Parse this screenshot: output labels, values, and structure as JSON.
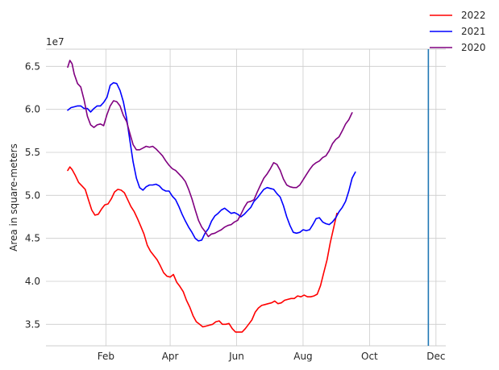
{
  "chart_data": {
    "type": "line",
    "title": "",
    "xlabel": "",
    "ylabel": "Area in square-meters",
    "y_offset_label": "1e7",
    "x_unit": "day of year",
    "xlim": [
      -24,
      343
    ],
    "ylim": [
      3.25,
      6.7
    ],
    "y_ticks": [
      3.5,
      4.0,
      4.5,
      5.0,
      5.5,
      6.0,
      6.5
    ],
    "y_tick_labels": [
      "3.5",
      "4.0",
      "4.5",
      "5.0",
      "5.5",
      "6.0",
      "6.5"
    ],
    "x_ticks": [
      31,
      90,
      151,
      212,
      273,
      334
    ],
    "x_tick_labels": [
      "Feb",
      "Apr",
      "Jun",
      "Aug",
      "Oct",
      "Dec"
    ],
    "grid": true,
    "legend_position": "top-right",
    "vline_x": 327,
    "vline_color": "#1f77b4",
    "series": [
      {
        "name": "2022",
        "color": "#ff0000",
        "points": [
          [
            -4,
            5.29
          ],
          [
            -2,
            5.33
          ],
          [
            0,
            5.3
          ],
          [
            3,
            5.23
          ],
          [
            6,
            5.15
          ],
          [
            9,
            5.11
          ],
          [
            12,
            5.07
          ],
          [
            15,
            4.95
          ],
          [
            18,
            4.83
          ],
          [
            21,
            4.77
          ],
          [
            24,
            4.78
          ],
          [
            27,
            4.84
          ],
          [
            30,
            4.89
          ],
          [
            33,
            4.9
          ],
          [
            36,
            4.96
          ],
          [
            39,
            5.04
          ],
          [
            42,
            5.07
          ],
          [
            45,
            5.06
          ],
          [
            48,
            5.03
          ],
          [
            51,
            4.95
          ],
          [
            54,
            4.87
          ],
          [
            57,
            4.81
          ],
          [
            60,
            4.73
          ],
          [
            63,
            4.64
          ],
          [
            66,
            4.55
          ],
          [
            69,
            4.42
          ],
          [
            72,
            4.35
          ],
          [
            75,
            4.3
          ],
          [
            78,
            4.25
          ],
          [
            81,
            4.18
          ],
          [
            84,
            4.1
          ],
          [
            87,
            4.06
          ],
          [
            90,
            4.05
          ],
          [
            93,
            4.08
          ],
          [
            96,
            3.99
          ],
          [
            99,
            3.94
          ],
          [
            102,
            3.88
          ],
          [
            105,
            3.78
          ],
          [
            108,
            3.7
          ],
          [
            111,
            3.6
          ],
          [
            114,
            3.53
          ],
          [
            117,
            3.5
          ],
          [
            120,
            3.47
          ],
          [
            123,
            3.48
          ],
          [
            126,
            3.49
          ],
          [
            129,
            3.5
          ],
          [
            132,
            3.53
          ],
          [
            135,
            3.54
          ],
          [
            138,
            3.5
          ],
          [
            141,
            3.5
          ],
          [
            144,
            3.51
          ],
          [
            147,
            3.45
          ],
          [
            150,
            3.41
          ],
          [
            153,
            3.41
          ],
          [
            156,
            3.41
          ],
          [
            159,
            3.45
          ],
          [
            162,
            3.5
          ],
          [
            165,
            3.55
          ],
          [
            168,
            3.64
          ],
          [
            171,
            3.69
          ],
          [
            174,
            3.72
          ],
          [
            177,
            3.73
          ],
          [
            180,
            3.74
          ],
          [
            183,
            3.75
          ],
          [
            186,
            3.77
          ],
          [
            189,
            3.74
          ],
          [
            192,
            3.75
          ],
          [
            195,
            3.78
          ],
          [
            198,
            3.79
          ],
          [
            201,
            3.8
          ],
          [
            204,
            3.8
          ],
          [
            207,
            3.83
          ],
          [
            210,
            3.82
          ],
          [
            213,
            3.84
          ],
          [
            216,
            3.82
          ],
          [
            219,
            3.82
          ],
          [
            222,
            3.83
          ],
          [
            225,
            3.85
          ],
          [
            228,
            3.95
          ],
          [
            231,
            4.1
          ],
          [
            234,
            4.25
          ],
          [
            237,
            4.45
          ],
          [
            240,
            4.62
          ],
          [
            243,
            4.79
          ]
        ]
      },
      {
        "name": "2021",
        "color": "#0000ff",
        "points": [
          [
            -4,
            5.99
          ],
          [
            -1,
            6.02
          ],
          [
            2,
            6.03
          ],
          [
            5,
            6.04
          ],
          [
            8,
            6.04
          ],
          [
            11,
            6.01
          ],
          [
            14,
            6.01
          ],
          [
            17,
            5.97
          ],
          [
            20,
            6.01
          ],
          [
            23,
            6.04
          ],
          [
            26,
            6.04
          ],
          [
            29,
            6.08
          ],
          [
            32,
            6.14
          ],
          [
            35,
            6.28
          ],
          [
            38,
            6.31
          ],
          [
            41,
            6.3
          ],
          [
            44,
            6.22
          ],
          [
            47,
            6.09
          ],
          [
            50,
            5.9
          ],
          [
            53,
            5.64
          ],
          [
            56,
            5.39
          ],
          [
            59,
            5.2
          ],
          [
            62,
            5.09
          ],
          [
            65,
            5.06
          ],
          [
            68,
            5.1
          ],
          [
            71,
            5.12
          ],
          [
            74,
            5.12
          ],
          [
            77,
            5.13
          ],
          [
            80,
            5.11
          ],
          [
            83,
            5.07
          ],
          [
            86,
            5.05
          ],
          [
            89,
            5.05
          ],
          [
            92,
            4.99
          ],
          [
            95,
            4.95
          ],
          [
            98,
            4.87
          ],
          [
            101,
            4.78
          ],
          [
            104,
            4.7
          ],
          [
            107,
            4.63
          ],
          [
            110,
            4.57
          ],
          [
            113,
            4.5
          ],
          [
            116,
            4.47
          ],
          [
            119,
            4.48
          ],
          [
            122,
            4.56
          ],
          [
            125,
            4.61
          ],
          [
            128,
            4.7
          ],
          [
            131,
            4.76
          ],
          [
            134,
            4.79
          ],
          [
            137,
            4.83
          ],
          [
            140,
            4.85
          ],
          [
            143,
            4.82
          ],
          [
            146,
            4.79
          ],
          [
            149,
            4.8
          ],
          [
            152,
            4.78
          ],
          [
            155,
            4.75
          ],
          [
            158,
            4.78
          ],
          [
            161,
            4.82
          ],
          [
            164,
            4.86
          ],
          [
            167,
            4.93
          ],
          [
            170,
            4.97
          ],
          [
            173,
            5.02
          ],
          [
            176,
            5.07
          ],
          [
            179,
            5.09
          ],
          [
            182,
            5.08
          ],
          [
            185,
            5.07
          ],
          [
            188,
            5.02
          ],
          [
            191,
            4.98
          ],
          [
            194,
            4.88
          ],
          [
            197,
            4.75
          ],
          [
            200,
            4.65
          ],
          [
            203,
            4.57
          ],
          [
            206,
            4.56
          ],
          [
            209,
            4.57
          ],
          [
            212,
            4.6
          ],
          [
            215,
            4.59
          ],
          [
            218,
            4.6
          ],
          [
            221,
            4.66
          ],
          [
            224,
            4.73
          ],
          [
            227,
            4.74
          ],
          [
            230,
            4.69
          ],
          [
            233,
            4.67
          ],
          [
            236,
            4.66
          ],
          [
            239,
            4.69
          ],
          [
            242,
            4.74
          ],
          [
            245,
            4.81
          ],
          [
            248,
            4.86
          ],
          [
            251,
            4.93
          ],
          [
            254,
            5.05
          ],
          [
            257,
            5.2
          ],
          [
            260,
            5.27
          ]
        ]
      },
      {
        "name": "2020",
        "color": "#800080",
        "points": [
          [
            -4,
            6.49
          ],
          [
            -2,
            6.57
          ],
          [
            0,
            6.53
          ],
          [
            2,
            6.41
          ],
          [
            5,
            6.3
          ],
          [
            8,
            6.26
          ],
          [
            11,
            6.11
          ],
          [
            14,
            5.92
          ],
          [
            17,
            5.82
          ],
          [
            20,
            5.79
          ],
          [
            23,
            5.82
          ],
          [
            26,
            5.83
          ],
          [
            29,
            5.81
          ],
          [
            32,
            5.94
          ],
          [
            35,
            6.04
          ],
          [
            38,
            6.1
          ],
          [
            41,
            6.09
          ],
          [
            44,
            6.04
          ],
          [
            47,
            5.93
          ],
          [
            50,
            5.86
          ],
          [
            53,
            5.72
          ],
          [
            56,
            5.59
          ],
          [
            59,
            5.53
          ],
          [
            62,
            5.53
          ],
          [
            65,
            5.55
          ],
          [
            68,
            5.57
          ],
          [
            71,
            5.56
          ],
          [
            74,
            5.57
          ],
          [
            77,
            5.54
          ],
          [
            80,
            5.5
          ],
          [
            83,
            5.46
          ],
          [
            86,
            5.4
          ],
          [
            89,
            5.35
          ],
          [
            92,
            5.31
          ],
          [
            95,
            5.29
          ],
          [
            98,
            5.25
          ],
          [
            101,
            5.21
          ],
          [
            104,
            5.16
          ],
          [
            107,
            5.07
          ],
          [
            110,
            4.96
          ],
          [
            113,
            4.83
          ],
          [
            116,
            4.71
          ],
          [
            119,
            4.63
          ],
          [
            122,
            4.58
          ],
          [
            125,
            4.52
          ],
          [
            128,
            4.55
          ],
          [
            131,
            4.56
          ],
          [
            134,
            4.58
          ],
          [
            137,
            4.6
          ],
          [
            140,
            4.63
          ],
          [
            143,
            4.65
          ],
          [
            146,
            4.66
          ],
          [
            149,
            4.69
          ],
          [
            152,
            4.71
          ],
          [
            155,
            4.78
          ],
          [
            158,
            4.86
          ],
          [
            161,
            4.92
          ],
          [
            164,
            4.93
          ],
          [
            167,
            4.95
          ],
          [
            170,
            5.04
          ],
          [
            173,
            5.12
          ],
          [
            176,
            5.2
          ],
          [
            179,
            5.25
          ],
          [
            182,
            5.31
          ],
          [
            185,
            5.38
          ],
          [
            188,
            5.36
          ],
          [
            191,
            5.29
          ],
          [
            194,
            5.19
          ],
          [
            197,
            5.12
          ],
          [
            200,
            5.1
          ],
          [
            203,
            5.09
          ],
          [
            206,
            5.09
          ],
          [
            209,
            5.12
          ],
          [
            212,
            5.18
          ],
          [
            215,
            5.24
          ],
          [
            218,
            5.3
          ],
          [
            221,
            5.35
          ],
          [
            224,
            5.38
          ],
          [
            227,
            5.4
          ],
          [
            230,
            5.44
          ],
          [
            233,
            5.46
          ],
          [
            236,
            5.52
          ],
          [
            239,
            5.6
          ],
          [
            242,
            5.65
          ],
          [
            245,
            5.68
          ],
          [
            248,
            5.75
          ],
          [
            251,
            5.83
          ],
          [
            254,
            5.88
          ],
          [
            257,
            5.96
          ]
        ]
      }
    ]
  }
}
